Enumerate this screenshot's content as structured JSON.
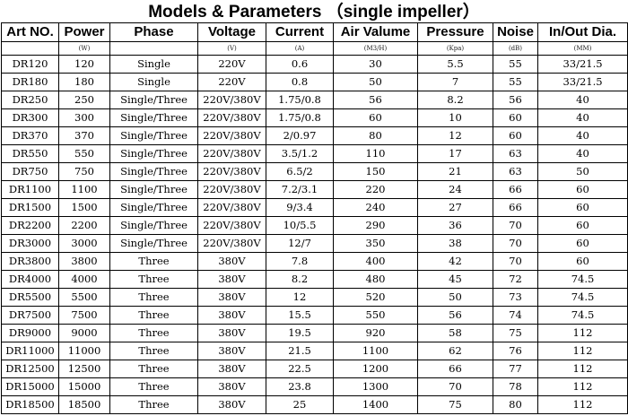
{
  "title": "Models & Parameters （single impeller）",
  "columns": [
    {
      "label": "Art NO.",
      "unit": ""
    },
    {
      "label": "Power",
      "unit": "(W)"
    },
    {
      "label": "Phase",
      "unit": ""
    },
    {
      "label": "Voltage",
      "unit": "(V)"
    },
    {
      "label": "Current",
      "unit": "(A)"
    },
    {
      "label": "Air Valume",
      "unit": "(M3/H)"
    },
    {
      "label": "Pressure",
      "unit": "(Kpa)"
    },
    {
      "label": "Noise",
      "unit": "(dB)"
    },
    {
      "label": "In/Out Dia.",
      "unit": "(MM)"
    }
  ],
  "rows": [
    [
      "DR120",
      "120",
      "Single",
      "220V",
      "0.6",
      "30",
      "5.5",
      "55",
      "33/21.5"
    ],
    [
      "DR180",
      "180",
      "Single",
      "220V",
      "0.8",
      "50",
      "7",
      "55",
      "33/21.5"
    ],
    [
      "DR250",
      "250",
      "Single/Three",
      "220V/380V",
      "1.75/0.8",
      "56",
      "8.2",
      "56",
      "40"
    ],
    [
      "DR300",
      "300",
      "Single/Three",
      "220V/380V",
      "1.75/0.8",
      "60",
      "10",
      "60",
      "40"
    ],
    [
      "DR370",
      "370",
      "Single/Three",
      "220V/380V",
      "2/0.97",
      "80",
      "12",
      "60",
      "40"
    ],
    [
      "DR550",
      "550",
      "Single/Three",
      "220V/380V",
      "3.5/1.2",
      "110",
      "17",
      "63",
      "40"
    ],
    [
      "DR750",
      "750",
      "Single/Three",
      "220V/380V",
      "6.5/2",
      "150",
      "21",
      "63",
      "50"
    ],
    [
      "DR1100",
      "1100",
      "Single/Three",
      "220V/380V",
      "7.2/3.1",
      "220",
      "24",
      "66",
      "60"
    ],
    [
      "DR1500",
      "1500",
      "Single/Three",
      "220V/380V",
      "9/3.4",
      "240",
      "27",
      "66",
      "60"
    ],
    [
      "DR2200",
      "2200",
      "Single/Three",
      "220V/380V",
      "10/5.5",
      "290",
      "36",
      "70",
      "60"
    ],
    [
      "DR3000",
      "3000",
      "Single/Three",
      "220V/380V",
      "12/7",
      "350",
      "38",
      "70",
      "60"
    ],
    [
      "DR3800",
      "3800",
      "Three",
      "380V",
      "7.8",
      "400",
      "42",
      "70",
      "60"
    ],
    [
      "DR4000",
      "4000",
      "Three",
      "380V",
      "8.2",
      "480",
      "45",
      "72",
      "74.5"
    ],
    [
      "DR5500",
      "5500",
      "Three",
      "380V",
      "12",
      "520",
      "50",
      "73",
      "74.5"
    ],
    [
      "DR7500",
      "7500",
      "Three",
      "380V",
      "15.5",
      "550",
      "56",
      "74",
      "74.5"
    ],
    [
      "DR9000",
      "9000",
      "Three",
      "380V",
      "19.5",
      "920",
      "58",
      "75",
      "112"
    ],
    [
      "DR11000",
      "11000",
      "Three",
      "380V",
      "21.5",
      "1100",
      "62",
      "76",
      "112"
    ],
    [
      "DR12500",
      "12500",
      "Three",
      "380V",
      "22.5",
      "1200",
      "66",
      "77",
      "112"
    ],
    [
      "DR15000",
      "15000",
      "Three",
      "380V",
      "23.8",
      "1300",
      "70",
      "78",
      "112"
    ],
    [
      "DR18500",
      "18500",
      "Three",
      "380V",
      "25",
      "1400",
      "75",
      "80",
      "112"
    ]
  ]
}
